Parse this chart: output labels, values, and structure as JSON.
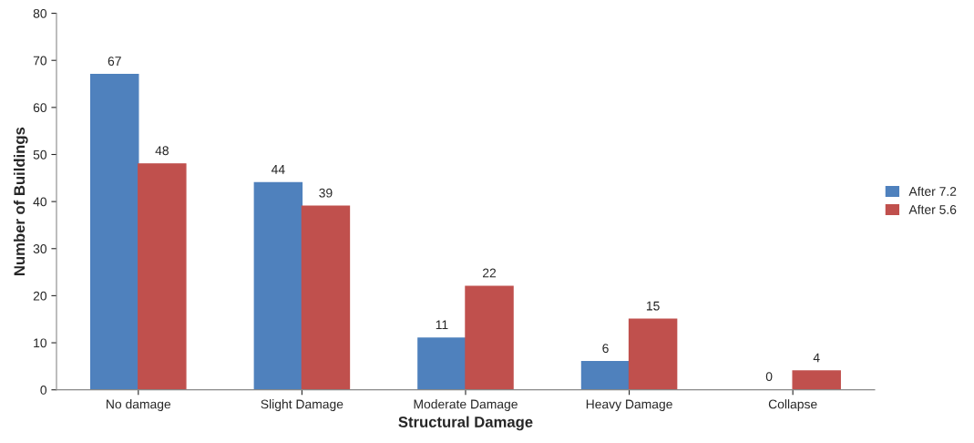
{
  "chart_data": {
    "type": "bar",
    "xlabel": "Structural Damage",
    "ylabel": "Number of Buildings",
    "categories": [
      "No damage",
      "Slight Damage",
      "Moderate Damage",
      "Heavy Damage",
      "Collapse"
    ],
    "series": [
      {
        "name": "After 7.2",
        "color": "#4f81bd",
        "values": [
          67,
          44,
          11,
          6,
          0
        ]
      },
      {
        "name": "After 5.6",
        "color": "#c0504d",
        "values": [
          48,
          39,
          22,
          15,
          4
        ]
      }
    ],
    "ylim": [
      0,
      80
    ],
    "yticks": [
      0,
      10,
      20,
      30,
      40,
      50,
      60,
      70,
      80
    ],
    "grid": false,
    "legend": "right",
    "data_labels": true
  }
}
